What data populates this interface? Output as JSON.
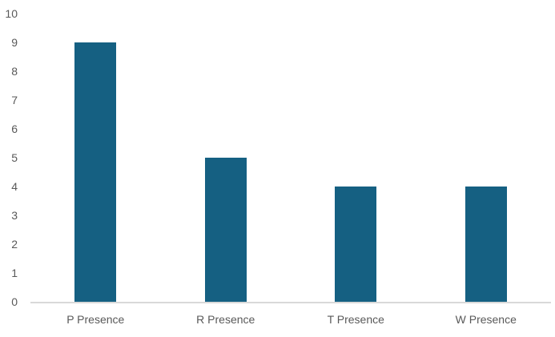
{
  "chart_data": {
    "type": "bar",
    "categories": [
      "P Presence",
      "R Presence",
      "T Presence",
      "W Presence"
    ],
    "values": [
      9,
      5,
      4,
      4
    ],
    "title": "",
    "xlabel": "",
    "ylabel": "",
    "ylim": [
      0,
      10
    ],
    "ytick_step": 1,
    "ytick_labels": [
      "0",
      "1",
      "2",
      "3",
      "4",
      "5",
      "6",
      "7",
      "8",
      "9",
      "10"
    ],
    "grid": false,
    "legend": "none",
    "colors": {
      "bar_fill": "#156082",
      "axis_line": "#d9d9d9",
      "tick_label": "#595959"
    }
  }
}
